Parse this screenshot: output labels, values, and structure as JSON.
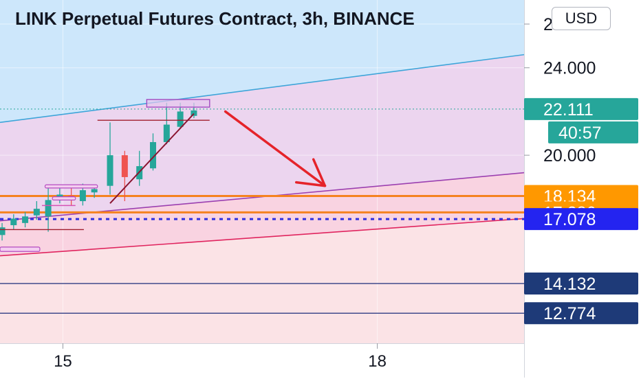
{
  "title": "LINK Perpetual Futures Contract, 3h, BINANCE",
  "currency": "USD",
  "colors": {
    "upper_zone": "#cde7fb",
    "middle_zone": "#ecd5ef",
    "lower_zone": "#f9d3e1",
    "bottom_zone": "#fbe3e6",
    "up_candle": "#26a69a",
    "down_candle": "#ef5350",
    "arrow": "#e5232a",
    "support_line": "#f5821f",
    "dotted_line": "#2f2fe0",
    "dark_line": "#1b2b7a"
  },
  "chart_data": {
    "type": "candlestick",
    "title": "LINK Perpetual Futures Contract, 3h, BINANCE",
    "y_axis": {
      "position": "right",
      "ticks": [
        26,
        24,
        20
      ],
      "tick_labels": [
        "26.000",
        "24.000",
        "20.000"
      ],
      "range": [
        11.4,
        27.1
      ]
    },
    "x_axis": {
      "ticks": [
        "15",
        "18"
      ],
      "tick_positions": [
        15,
        18
      ],
      "range": [
        14.4,
        19.4
      ]
    },
    "candles": [
      {
        "x": 14.42,
        "open": 16.35,
        "high": 16.9,
        "low": 16.1,
        "close": 16.7
      },
      {
        "x": 14.53,
        "open": 16.8,
        "high": 17.3,
        "low": 16.6,
        "close": 17.1
      },
      {
        "x": 14.64,
        "open": 16.9,
        "high": 17.4,
        "low": 16.7,
        "close": 17.2
      },
      {
        "x": 14.75,
        "open": 17.25,
        "high": 17.9,
        "low": 17.05,
        "close": 17.55
      },
      {
        "x": 14.86,
        "open": 17.2,
        "high": 18.6,
        "low": 16.5,
        "close": 17.95
      },
      {
        "x": 14.97,
        "open": 18.0,
        "high": 18.6,
        "low": 17.8,
        "close": 18.2
      },
      {
        "x": 15.08,
        "open": 18.15,
        "high": 18.5,
        "low": 17.7,
        "close": 17.95
      },
      {
        "x": 15.19,
        "open": 17.9,
        "high": 18.7,
        "low": 17.7,
        "close": 18.4
      },
      {
        "x": 15.3,
        "open": 18.3,
        "high": 18.6,
        "low": 18.05,
        "close": 18.45
      },
      {
        "x": 15.45,
        "open": 18.6,
        "high": 21.5,
        "low": 18.2,
        "close": 20.0
      },
      {
        "x": 15.59,
        "open": 20.0,
        "high": 20.2,
        "low": 17.9,
        "close": 19.0
      },
      {
        "x": 15.73,
        "open": 18.9,
        "high": 20.2,
        "low": 18.6,
        "close": 19.5
      },
      {
        "x": 15.86,
        "open": 19.4,
        "high": 21.0,
        "low": 19.3,
        "close": 20.6
      },
      {
        "x": 15.99,
        "open": 20.6,
        "high": 22.4,
        "low": 20.5,
        "close": 21.4
      },
      {
        "x": 16.12,
        "open": 21.3,
        "high": 22.4,
        "low": 21.2,
        "close": 22.0
      },
      {
        "x": 16.25,
        "open": 21.8,
        "high": 22.4,
        "low": 21.7,
        "close": 22.05
      }
    ],
    "bands": [
      {
        "name": "upper-band",
        "x": [
          14.4,
          19.4
        ],
        "y": [
          21.5,
          24.6
        ]
      },
      {
        "name": "middle-band",
        "x": [
          14.4,
          19.4
        ],
        "y": [
          17.0,
          19.2
        ]
      },
      {
        "name": "lower-band",
        "x": [
          14.4,
          19.4
        ],
        "y": [
          15.4,
          17.1
        ]
      }
    ],
    "trendline": {
      "x": [
        15.45,
        16.25
      ],
      "y": [
        17.8,
        21.9
      ]
    },
    "resistance_box": {
      "x": [
        15.8,
        16.4
      ],
      "y": [
        22.2,
        22.55
      ]
    },
    "arrow": {
      "from": [
        16.55,
        22.0
      ],
      "to": [
        17.5,
        18.6
      ]
    },
    "segments": [
      {
        "name": "resistance-segment",
        "x": [
          15.33,
          16.4
        ],
        "y": [
          21.6,
          21.6
        ]
      },
      {
        "name": "lower-segment",
        "x": [
          14.4,
          15.2
        ],
        "y": [
          16.6,
          16.6
        ]
      },
      {
        "name": "pink-segment",
        "x": [
          14.8,
          15.12
        ],
        "y": [
          17.7,
          17.7
        ]
      }
    ],
    "small_boxes": [
      {
        "name": "small-box-left",
        "x": [
          14.4,
          14.78
        ],
        "y": [
          15.6,
          15.8
        ]
      },
      {
        "name": "small-box-mid",
        "x": [
          14.83,
          15.33
        ],
        "y": [
          18.5,
          18.65
        ]
      },
      {
        "name": "small-box-low",
        "x": [
          14.9,
          15.12
        ],
        "y": [
          17.95,
          18.1
        ]
      }
    ],
    "price_lines": [
      {
        "name": "last-price",
        "value": 22.111,
        "label": "22.111",
        "style": "dotted",
        "color": "#26a69a",
        "label_bg": "#26a69a"
      },
      {
        "name": "orange-upper",
        "value": 18.134,
        "label": "18.134",
        "style": "solid",
        "color": "#f5821f",
        "label_bg": "#ff9800"
      },
      {
        "name": "orange-lower",
        "value": 17.386,
        "label": "17.386",
        "style": "solid",
        "color": "#f5821f",
        "label_bg": "#ff9800"
      },
      {
        "name": "blue-dotted",
        "value": 17.078,
        "label": "17.078",
        "style": "dashed",
        "color": "#2f2fe0",
        "label_bg": "#2424f0"
      },
      {
        "name": "navy-upper",
        "value": 14.132,
        "label": "14.132",
        "style": "solid",
        "color": "#1b2b7a",
        "label_bg": "#1e3a78"
      },
      {
        "name": "navy-lower",
        "value": 12.774,
        "label": "12.774",
        "style": "solid",
        "color": "#1b2b7a",
        "label_bg": "#1e3a78"
      }
    ],
    "countdown": {
      "label": "40:57"
    },
    "grid": true,
    "legend": "none"
  }
}
